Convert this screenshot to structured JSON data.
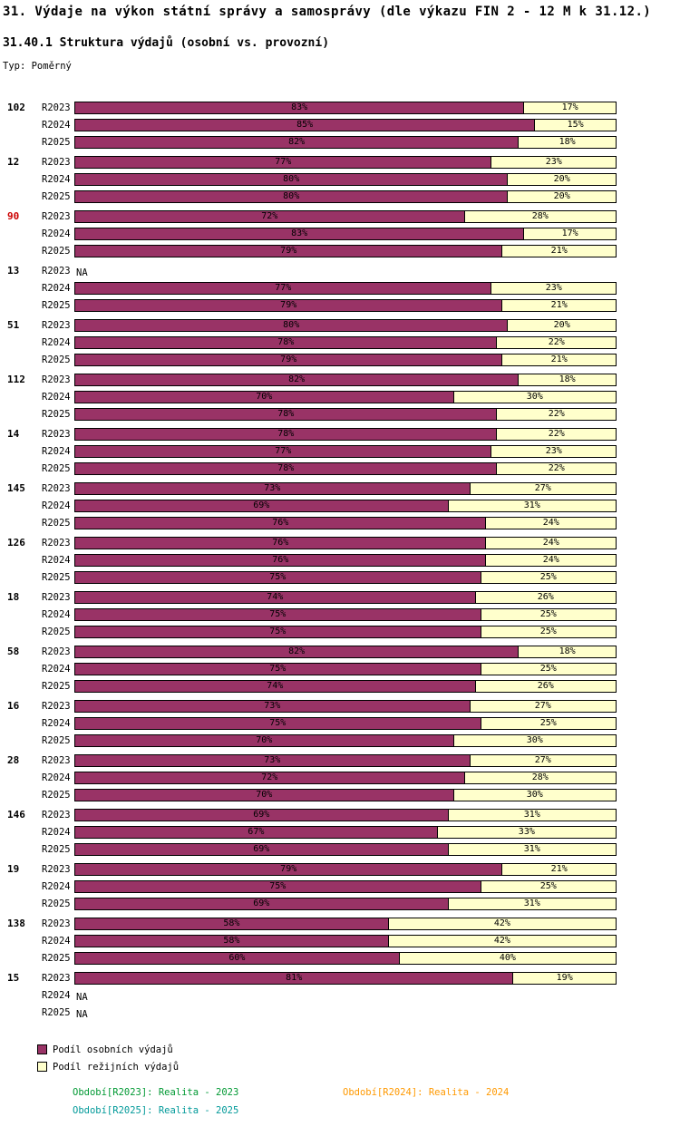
{
  "title": "31. Výdaje na výkon státní správy a samosprávy (dle výkazu FIN 2 - 12 M k 31.12.)",
  "subtitle": "31.40.1 Struktura výdajů (osobní vs. provozní)",
  "type_label": "Typ: Poměrný",
  "na_label": "NA",
  "colors": {
    "personal_fill": "#993366",
    "overhead_fill": "#FFFFCC",
    "bar_border": "#000000",
    "highlight_group_label": "#CC0000",
    "note_2023": "#009933",
    "note_2024": "#FF9900",
    "note_2025": "#009999"
  },
  "legend": [
    {
      "name": "personal",
      "label": "Podíl osobních výdajů"
    },
    {
      "name": "overhead",
      "label": "Podíl režijních výdajů"
    }
  ],
  "footnotes": [
    {
      "id": "R2023",
      "text": "Období[R2023]: Realita - 2023"
    },
    {
      "id": "R2024",
      "text": "Období[R2024]: Realita - 2024"
    },
    {
      "id": "R2025",
      "text": "Období[R2025]: Realita - 2025"
    }
  ],
  "chart_data": {
    "type": "bar",
    "orientation": "horizontal",
    "stacked": true,
    "unit": "%",
    "xlim": [
      0,
      100
    ],
    "series_names": [
      "Podíl osobních výdajů",
      "Podíl režijních výdajů"
    ],
    "row_labels": [
      "R2023",
      "R2024",
      "R2025"
    ],
    "groups": [
      {
        "id": "102",
        "highlight": false,
        "rows": [
          [
            83,
            17
          ],
          [
            85,
            15
          ],
          [
            82,
            18
          ]
        ]
      },
      {
        "id": "12",
        "highlight": false,
        "rows": [
          [
            77,
            23
          ],
          [
            80,
            20
          ],
          [
            80,
            20
          ]
        ]
      },
      {
        "id": "90",
        "highlight": true,
        "rows": [
          [
            72,
            28
          ],
          [
            83,
            17
          ],
          [
            79,
            21
          ]
        ]
      },
      {
        "id": "13",
        "highlight": false,
        "rows": [
          null,
          [
            77,
            23
          ],
          [
            79,
            21
          ]
        ]
      },
      {
        "id": "51",
        "highlight": false,
        "rows": [
          [
            80,
            20
          ],
          [
            78,
            22
          ],
          [
            79,
            21
          ]
        ]
      },
      {
        "id": "112",
        "highlight": false,
        "rows": [
          [
            82,
            18
          ],
          [
            70,
            30
          ],
          [
            78,
            22
          ]
        ]
      },
      {
        "id": "14",
        "highlight": false,
        "rows": [
          [
            78,
            22
          ],
          [
            77,
            23
          ],
          [
            78,
            22
          ]
        ]
      },
      {
        "id": "145",
        "highlight": false,
        "rows": [
          [
            73,
            27
          ],
          [
            69,
            31
          ],
          [
            76,
            24
          ]
        ]
      },
      {
        "id": "126",
        "highlight": false,
        "rows": [
          [
            76,
            24
          ],
          [
            76,
            24
          ],
          [
            75,
            25
          ]
        ]
      },
      {
        "id": "18",
        "highlight": false,
        "rows": [
          [
            74,
            26
          ],
          [
            75,
            25
          ],
          [
            75,
            25
          ]
        ]
      },
      {
        "id": "58",
        "highlight": false,
        "rows": [
          [
            82,
            18
          ],
          [
            75,
            25
          ],
          [
            74,
            26
          ]
        ]
      },
      {
        "id": "16",
        "highlight": false,
        "rows": [
          [
            73,
            27
          ],
          [
            75,
            25
          ],
          [
            70,
            30
          ]
        ]
      },
      {
        "id": "28",
        "highlight": false,
        "rows": [
          [
            73,
            27
          ],
          [
            72,
            28
          ],
          [
            70,
            30
          ]
        ]
      },
      {
        "id": "146",
        "highlight": false,
        "rows": [
          [
            69,
            31
          ],
          [
            67,
            33
          ],
          [
            69,
            31
          ]
        ]
      },
      {
        "id": "19",
        "highlight": false,
        "rows": [
          [
            79,
            21
          ],
          [
            75,
            25
          ],
          [
            69,
            31
          ]
        ]
      },
      {
        "id": "138",
        "highlight": false,
        "rows": [
          [
            58,
            42
          ],
          [
            58,
            42
          ],
          [
            60,
            40
          ]
        ]
      },
      {
        "id": "15",
        "highlight": false,
        "rows": [
          [
            81,
            19
          ],
          null,
          null
        ]
      }
    ]
  }
}
